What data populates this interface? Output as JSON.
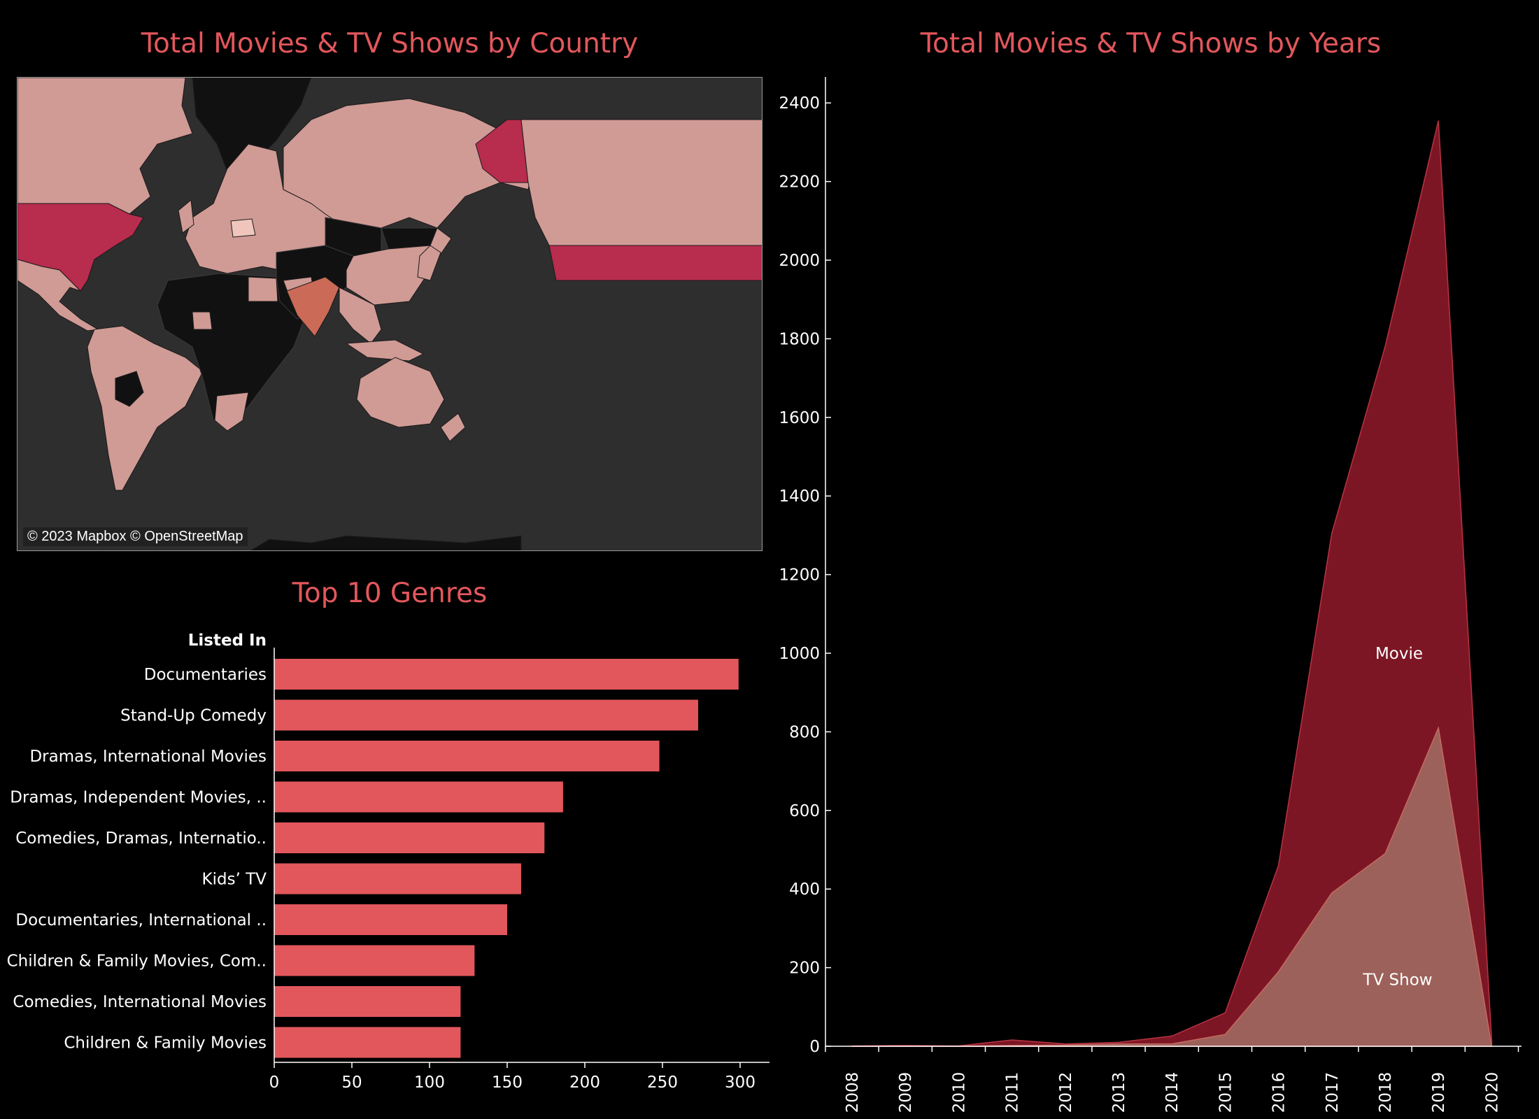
{
  "map": {
    "title": "Total Movies & TV Shows by Country",
    "credit": "© 2023 Mapbox © OpenStreetMap",
    "colors": {
      "ocean": "#2e2e2e",
      "no_data": "#111111",
      "low": "#d09a95",
      "mid": "#cc6a58",
      "high": "#b82c4e",
      "borders": "#1a1a1a"
    }
  },
  "genres": {
    "title": "Top 10 Genres",
    "axis_label": "Listed In"
  },
  "years": {
    "title": "Total Movies & TV Shows by Years"
  },
  "chart_data": [
    {
      "type": "bar",
      "title": "Top 10 Genres",
      "xlabel": "",
      "ylabel": "Listed In",
      "orientation": "horizontal",
      "categories": [
        "Documentaries",
        "Stand-Up Comedy",
        "Dramas, International Movies",
        "Dramas, Independent Movies, ..",
        "Comedies, Dramas, Internatio..",
        "Kids’ TV",
        "Documentaries, International ..",
        "Children & Family Movies, Com..",
        "Comedies, International Movies",
        "Children & Family Movies"
      ],
      "values": [
        299,
        273,
        248,
        186,
        174,
        159,
        150,
        129,
        120,
        120
      ],
      "xlim": [
        0,
        320
      ],
      "xticks": [
        0,
        50,
        100,
        150,
        200,
        250,
        300
      ],
      "color": "#e2575c"
    },
    {
      "type": "area",
      "stacked": true,
      "title": "Total Movies & TV Shows by Years",
      "x": [
        "2008",
        "2009",
        "2010",
        "2011",
        "2012",
        "2013",
        "2014",
        "2015",
        "2016",
        "2017",
        "2018",
        "2019",
        "2020"
      ],
      "series": [
        {
          "name": "TV Show",
          "color": "#9c615a",
          "values": [
            0,
            0,
            0,
            2,
            3,
            6,
            6,
            30,
            190,
            390,
            490,
            810,
            0
          ]
        },
        {
          "name": "Movie",
          "color": "#7d1624",
          "values": [
            1,
            2,
            1,
            14,
            3,
            4,
            20,
            55,
            270,
            915,
            1290,
            1545,
            14
          ]
        }
      ],
      "ylim": [
        0,
        2460
      ],
      "yticks": [
        0,
        200,
        400,
        600,
        800,
        1000,
        1200,
        1400,
        1600,
        1800,
        2000,
        2200,
        2400
      ],
      "grid": false
    }
  ]
}
